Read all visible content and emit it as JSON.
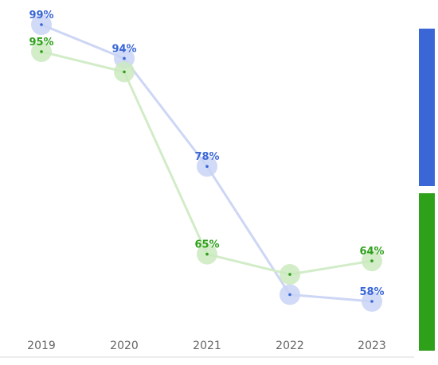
{
  "chart_data": {
    "type": "line",
    "categories": [
      "2019",
      "2020",
      "2021",
      "2022",
      "2023"
    ],
    "series": [
      {
        "values": [
          99,
          94,
          78,
          59,
          58
        ],
        "labels": [
          "99%",
          "94%",
          "78%",
          "",
          "58%"
        ],
        "color": "#3a66d6",
        "marker_color": "#c9d3f5",
        "line_color": "#cdd6f4"
      },
      {
        "values": [
          95,
          92,
          65,
          62,
          64
        ],
        "labels": [
          "95%",
          "",
          "65%",
          "",
          "64%"
        ],
        "color": "#2ea01a",
        "marker_color": "#cbeac0",
        "line_color": "#d2ecc8"
      }
    ],
    "ylim": [
      56,
      101
    ],
    "grid": false,
    "legend_colors": [
      "#3a66d6",
      "#2ea01a"
    ],
    "legend_placement": "right"
  }
}
